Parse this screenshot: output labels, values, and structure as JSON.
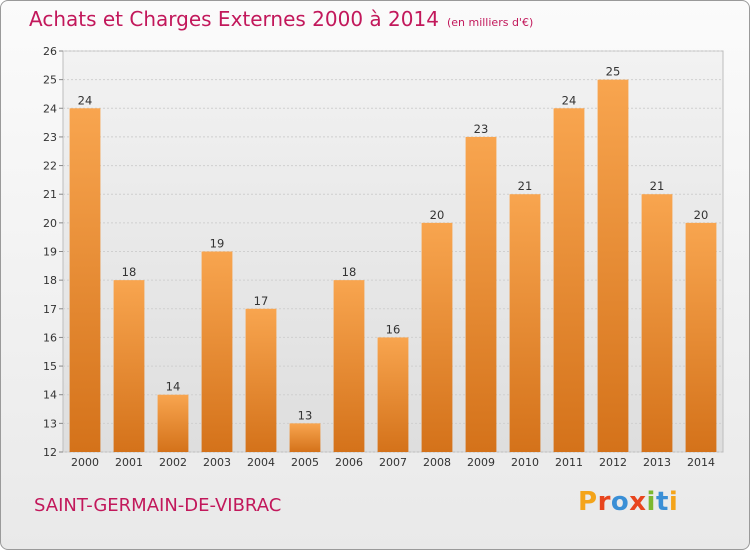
{
  "header": {
    "title": "Achats et Charges Externes 2000 à 2014",
    "subtitle": "(en milliers d'€)"
  },
  "footer": {
    "commune": "SAINT-GERMAIN-DE-VIBRAC",
    "logo": "Proxiti",
    "logo_colors": [
      "#f4a41a",
      "#e8451e",
      "#3a8fd6",
      "#e8451e",
      "#7cb82f",
      "#3a8fd6",
      "#f4a41a"
    ]
  },
  "chart_data": {
    "type": "bar",
    "title": "Achats et Charges Externes 2000 à 2014",
    "subtitle": "(en milliers d'€)",
    "categories": [
      "2000",
      "2001",
      "2002",
      "2003",
      "2004",
      "2005",
      "2006",
      "2007",
      "2008",
      "2009",
      "2010",
      "2011",
      "2012",
      "2013",
      "2014"
    ],
    "values": [
      24,
      18,
      14,
      19,
      17,
      13,
      18,
      16,
      20,
      23,
      21,
      24,
      25,
      21,
      20
    ],
    "ylim": [
      12,
      26
    ],
    "yticks": [
      12,
      13,
      14,
      15,
      16,
      17,
      18,
      19,
      20,
      21,
      22,
      23,
      24,
      25,
      26
    ],
    "grid": true,
    "bar_color_top": "#f8a54f",
    "bar_color_bottom": "#d4721a"
  }
}
